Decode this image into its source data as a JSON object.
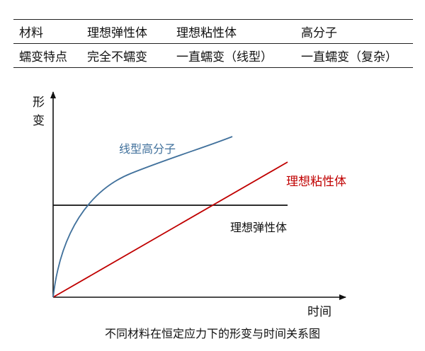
{
  "table": {
    "headers": [
      "材料",
      "理想弹性体",
      "理想粘性体",
      "高分子"
    ],
    "rows": [
      [
        "蠕变特点",
        "完全不蠕变",
        "一直蠕变（线型）",
        "一直蠕变（复杂）"
      ]
    ]
  },
  "diagram": {
    "y_axis_label_1": "形",
    "y_axis_label_2": "变",
    "x_axis_label": "时间",
    "curves": {
      "polymer": {
        "label": "线型高分子",
        "color": "#41719c"
      },
      "viscous": {
        "label": "理想粘性体",
        "color": "#c00000"
      },
      "elastic": {
        "label": "理想弹性体",
        "color": "#111111"
      }
    }
  },
  "caption": "不同材料在恒定应力下的形变与时间关系图"
}
